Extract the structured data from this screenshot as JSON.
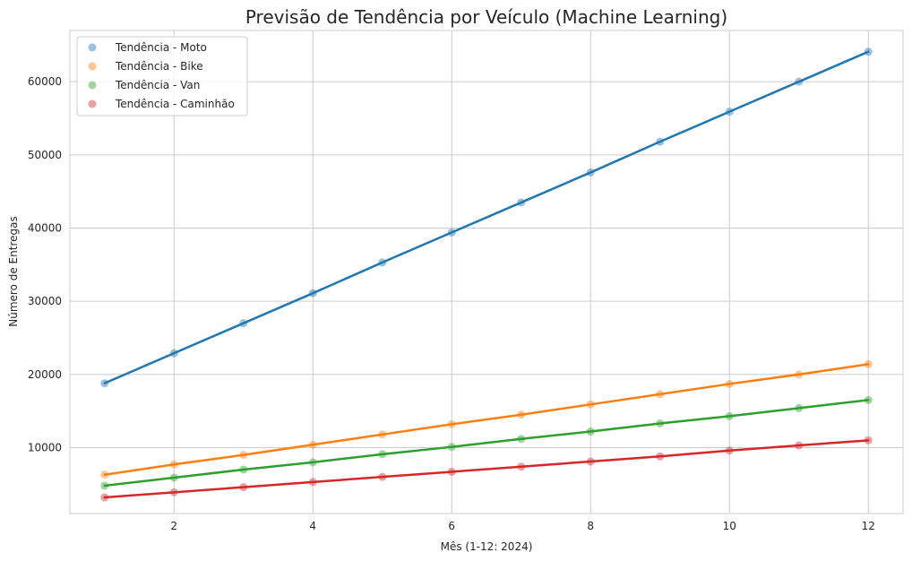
{
  "chart_data": {
    "type": "scatter",
    "title": "Previsão de Tendência por Veículo (Machine Learning)",
    "xlabel": "Mês (1-12: 2024)",
    "ylabel": "Número de Entregas",
    "xlim": [
      0.5,
      12.5
    ],
    "ylim": [
      1000,
      67000
    ],
    "xticks": [
      2,
      4,
      6,
      8,
      10,
      12
    ],
    "xtick_labels": [
      "2",
      "4",
      "6",
      "8",
      "10",
      "12"
    ],
    "yticks": [
      10000,
      20000,
      30000,
      40000,
      50000,
      60000
    ],
    "ytick_labels": [
      "10000",
      "20000",
      "30000",
      "40000",
      "50000",
      "60000"
    ],
    "grid": true,
    "legend_position": "top-left",
    "x": [
      1,
      2,
      3,
      4,
      5,
      6,
      7,
      8,
      9,
      10,
      11,
      12
    ],
    "series": [
      {
        "name": "Tendência - Moto",
        "color": "#1f77b4",
        "values": [
          18800,
          22900,
          27000,
          31100,
          35300,
          39400,
          43500,
          47600,
          51800,
          55900,
          60000,
          64100
        ]
      },
      {
        "name": "Tendência - Bike",
        "color": "#ff7f0e",
        "values": [
          6300,
          7700,
          9000,
          10400,
          11800,
          13200,
          14500,
          15900,
          17300,
          18700,
          20000,
          21400
        ]
      },
      {
        "name": "Tendência - Van",
        "color": "#2ca02c",
        "values": [
          4800,
          5900,
          7000,
          8000,
          9100,
          10100,
          11200,
          12200,
          13300,
          14300,
          15400,
          16500
        ]
      },
      {
        "name": "Tendência - Caminhão",
        "color": "#d62728",
        "values": [
          3200,
          3900,
          4600,
          5300,
          6000,
          6700,
          7400,
          8100,
          8800,
          9600,
          10300,
          11000
        ]
      }
    ]
  }
}
